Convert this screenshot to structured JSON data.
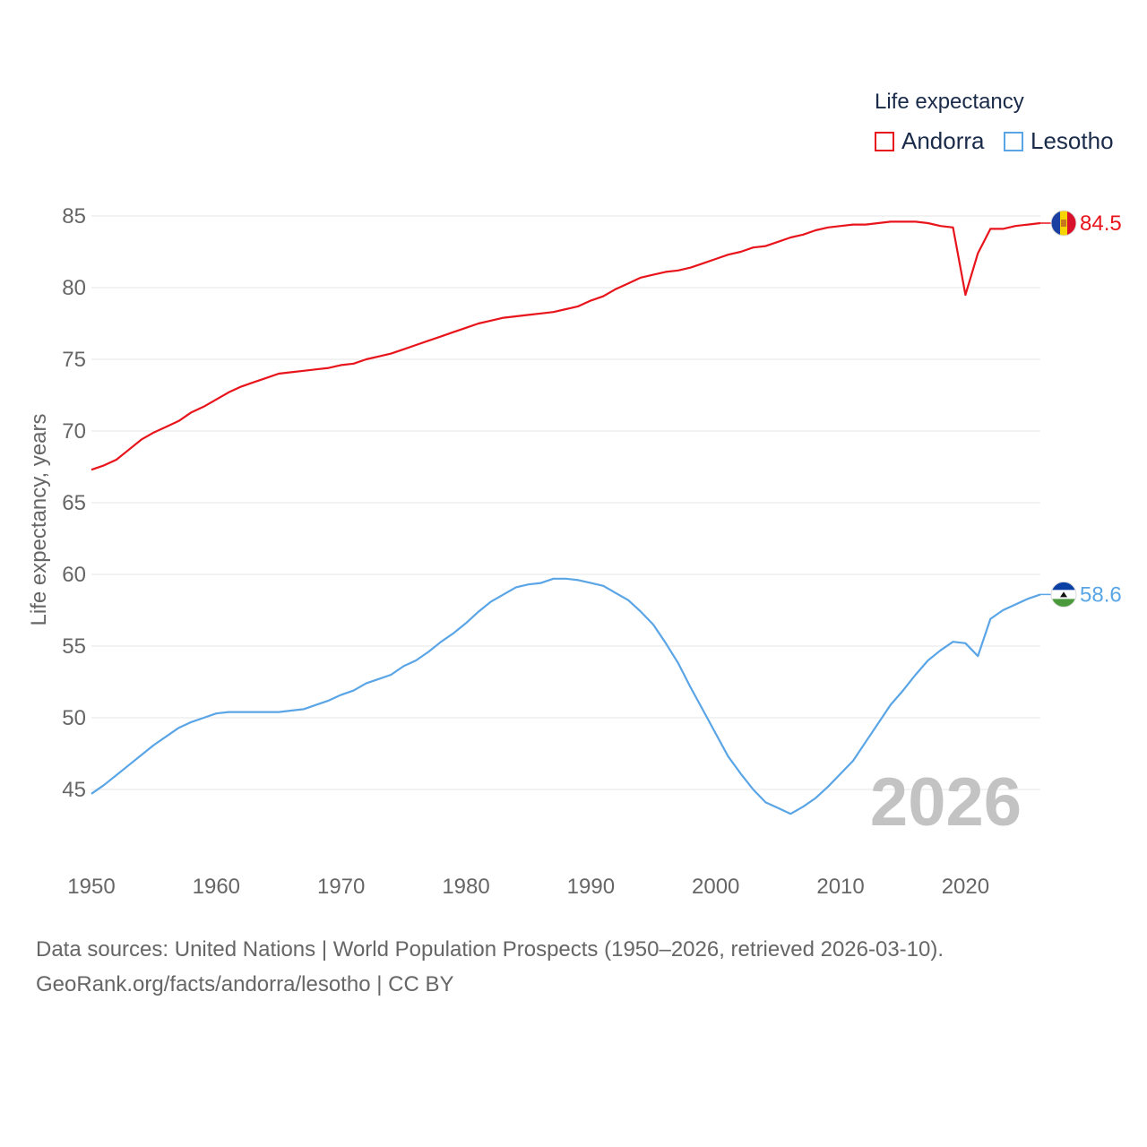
{
  "chart_data": {
    "type": "line",
    "title": "",
    "legend_title": "Life expectancy",
    "ylabel": "Life expectancy, years",
    "xlabel": "",
    "xlim": [
      1950,
      2026
    ],
    "ylim": [
      41,
      87
    ],
    "yticks": [
      45,
      50,
      55,
      60,
      65,
      70,
      75,
      80,
      85
    ],
    "xticks": [
      1950,
      1960,
      1970,
      1980,
      1990,
      2000,
      2010,
      2020
    ],
    "grid": true,
    "legend_position": "top-right",
    "current_year_label": "2026",
    "series": [
      {
        "name": "Andorra",
        "color": "#e8141b",
        "end_label": "84.5",
        "flag_icon": "andorra-flag-icon",
        "points": [
          [
            1950,
            67.3
          ],
          [
            1951,
            67.6
          ],
          [
            1952,
            68.0
          ],
          [
            1953,
            68.7
          ],
          [
            1954,
            69.4
          ],
          [
            1955,
            69.9
          ],
          [
            1956,
            70.3
          ],
          [
            1957,
            70.7
          ],
          [
            1958,
            71.3
          ],
          [
            1959,
            71.7
          ],
          [
            1960,
            72.2
          ],
          [
            1961,
            72.7
          ],
          [
            1962,
            73.1
          ],
          [
            1963,
            73.4
          ],
          [
            1964,
            73.7
          ],
          [
            1965,
            74.0
          ],
          [
            1966,
            74.1
          ],
          [
            1967,
            74.2
          ],
          [
            1968,
            74.3
          ],
          [
            1969,
            74.4
          ],
          [
            1970,
            74.6
          ],
          [
            1971,
            74.7
          ],
          [
            1972,
            75.0
          ],
          [
            1973,
            75.2
          ],
          [
            1974,
            75.4
          ],
          [
            1975,
            75.7
          ],
          [
            1976,
            76.0
          ],
          [
            1977,
            76.3
          ],
          [
            1978,
            76.6
          ],
          [
            1979,
            76.9
          ],
          [
            1980,
            77.2
          ],
          [
            1981,
            77.5
          ],
          [
            1982,
            77.7
          ],
          [
            1983,
            77.9
          ],
          [
            1984,
            78.0
          ],
          [
            1985,
            78.1
          ],
          [
            1986,
            78.2
          ],
          [
            1987,
            78.3
          ],
          [
            1988,
            78.5
          ],
          [
            1989,
            78.7
          ],
          [
            1990,
            79.1
          ],
          [
            1991,
            79.4
          ],
          [
            1992,
            79.9
          ],
          [
            1993,
            80.3
          ],
          [
            1994,
            80.7
          ],
          [
            1995,
            80.9
          ],
          [
            1996,
            81.1
          ],
          [
            1997,
            81.2
          ],
          [
            1998,
            81.4
          ],
          [
            1999,
            81.7
          ],
          [
            2000,
            82.0
          ],
          [
            2001,
            82.3
          ],
          [
            2002,
            82.5
          ],
          [
            2003,
            82.8
          ],
          [
            2004,
            82.9
          ],
          [
            2005,
            83.2
          ],
          [
            2006,
            83.5
          ],
          [
            2007,
            83.7
          ],
          [
            2008,
            84.0
          ],
          [
            2009,
            84.2
          ],
          [
            2010,
            84.3
          ],
          [
            2011,
            84.4
          ],
          [
            2012,
            84.4
          ],
          [
            2013,
            84.5
          ],
          [
            2014,
            84.6
          ],
          [
            2015,
            84.6
          ],
          [
            2016,
            84.6
          ],
          [
            2017,
            84.5
          ],
          [
            2018,
            84.3
          ],
          [
            2019,
            84.2
          ],
          [
            2020,
            79.5
          ],
          [
            2021,
            82.4
          ],
          [
            2022,
            84.1
          ],
          [
            2023,
            84.1
          ],
          [
            2024,
            84.3
          ],
          [
            2025,
            84.4
          ],
          [
            2026,
            84.5
          ]
        ]
      },
      {
        "name": "Lesotho",
        "color": "#5aa5e6",
        "end_label": "58.6",
        "flag_icon": "lesotho-flag-icon",
        "points": [
          [
            1950,
            44.7
          ],
          [
            1951,
            45.3
          ],
          [
            1952,
            46.0
          ],
          [
            1953,
            46.7
          ],
          [
            1954,
            47.4
          ],
          [
            1955,
            48.1
          ],
          [
            1956,
            48.7
          ],
          [
            1957,
            49.3
          ],
          [
            1958,
            49.7
          ],
          [
            1959,
            50.0
          ],
          [
            1960,
            50.3
          ],
          [
            1961,
            50.4
          ],
          [
            1962,
            50.4
          ],
          [
            1963,
            50.4
          ],
          [
            1964,
            50.4
          ],
          [
            1965,
            50.4
          ],
          [
            1966,
            50.5
          ],
          [
            1967,
            50.6
          ],
          [
            1968,
            50.9
          ],
          [
            1969,
            51.2
          ],
          [
            1970,
            51.6
          ],
          [
            1971,
            51.9
          ],
          [
            1972,
            52.4
          ],
          [
            1973,
            52.7
          ],
          [
            1974,
            53.0
          ],
          [
            1975,
            53.6
          ],
          [
            1976,
            54.0
          ],
          [
            1977,
            54.6
          ],
          [
            1978,
            55.3
          ],
          [
            1979,
            55.9
          ],
          [
            1980,
            56.6
          ],
          [
            1981,
            57.4
          ],
          [
            1982,
            58.1
          ],
          [
            1983,
            58.6
          ],
          [
            1984,
            59.1
          ],
          [
            1985,
            59.3
          ],
          [
            1986,
            59.4
          ],
          [
            1987,
            59.7
          ],
          [
            1988,
            59.7
          ],
          [
            1989,
            59.6
          ],
          [
            1990,
            59.4
          ],
          [
            1991,
            59.2
          ],
          [
            1992,
            58.7
          ],
          [
            1993,
            58.2
          ],
          [
            1994,
            57.4
          ],
          [
            1995,
            56.5
          ],
          [
            1996,
            55.2
          ],
          [
            1997,
            53.8
          ],
          [
            1998,
            52.1
          ],
          [
            1999,
            50.5
          ],
          [
            2000,
            48.9
          ],
          [
            2001,
            47.3
          ],
          [
            2002,
            46.1
          ],
          [
            2003,
            45.0
          ],
          [
            2004,
            44.1
          ],
          [
            2005,
            43.7
          ],
          [
            2006,
            43.3
          ],
          [
            2007,
            43.8
          ],
          [
            2008,
            44.4
          ],
          [
            2009,
            45.2
          ],
          [
            2010,
            46.1
          ],
          [
            2011,
            47.0
          ],
          [
            2012,
            48.3
          ],
          [
            2013,
            49.6
          ],
          [
            2014,
            50.9
          ],
          [
            2015,
            51.9
          ],
          [
            2016,
            53.0
          ],
          [
            2017,
            54.0
          ],
          [
            2018,
            54.7
          ],
          [
            2019,
            55.3
          ],
          [
            2020,
            55.2
          ],
          [
            2021,
            54.3
          ],
          [
            2022,
            56.9
          ],
          [
            2023,
            57.5
          ],
          [
            2024,
            57.9
          ],
          [
            2025,
            58.3
          ],
          [
            2026,
            58.6
          ]
        ]
      }
    ]
  },
  "footer": {
    "source_line": "Data sources: United Nations | World Population Prospects (1950–2026, retrieved 2026-03-10).",
    "url_line": "GeoRank.org/facts/andorra/lesotho | CC BY"
  }
}
